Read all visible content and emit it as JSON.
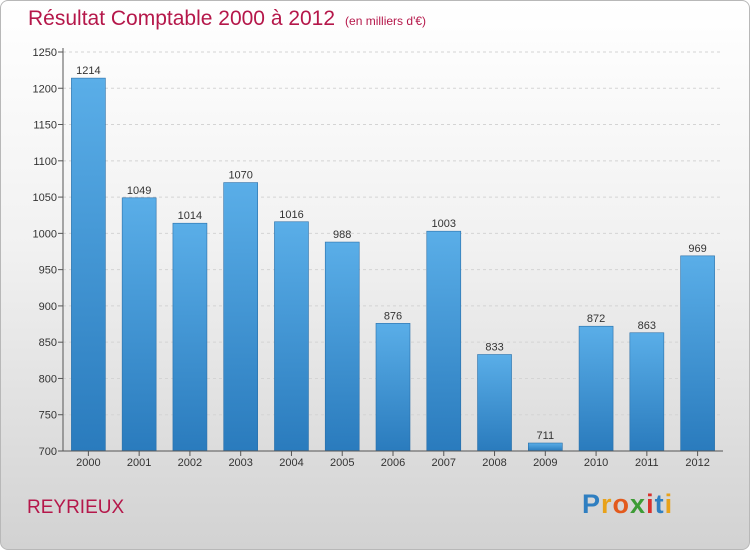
{
  "header": {
    "title": "Résultat Comptable 2000 à 2012",
    "subtitle": "(en milliers d'€)"
  },
  "location": "REYRIEUX",
  "logo": {
    "text": "Proxiti",
    "letters": [
      {
        "ch": "P",
        "color": "#2f7fc1"
      },
      {
        "ch": "r",
        "color": "#e8a21a"
      },
      {
        "ch": "o",
        "color": "#e35a1d"
      },
      {
        "ch": "x",
        "color": "#3d9b35"
      },
      {
        "ch": "i",
        "color": "#d9302c"
      },
      {
        "ch": "t",
        "color": "#2f7fc1"
      },
      {
        "ch": "i",
        "color": "#e8a21a"
      }
    ]
  },
  "chart_data": {
    "type": "bar",
    "title": "Résultat Comptable 2000 à 2012",
    "subtitle": "(en milliers d'€)",
    "categories": [
      "2000",
      "2001",
      "2002",
      "2003",
      "2004",
      "2005",
      "2006",
      "2007",
      "2008",
      "2009",
      "2010",
      "2011",
      "2012"
    ],
    "values": [
      1214,
      1049,
      1014,
      1070,
      1016,
      988,
      876,
      1003,
      833,
      711,
      872,
      863,
      969
    ],
    "ylim": [
      700,
      1250
    ],
    "yticks": [
      700,
      750,
      800,
      850,
      900,
      950,
      1000,
      1050,
      1100,
      1150,
      1200,
      1250
    ],
    "grid": true,
    "bar_color": "#3d93d6",
    "xlabel": "",
    "ylabel": ""
  }
}
